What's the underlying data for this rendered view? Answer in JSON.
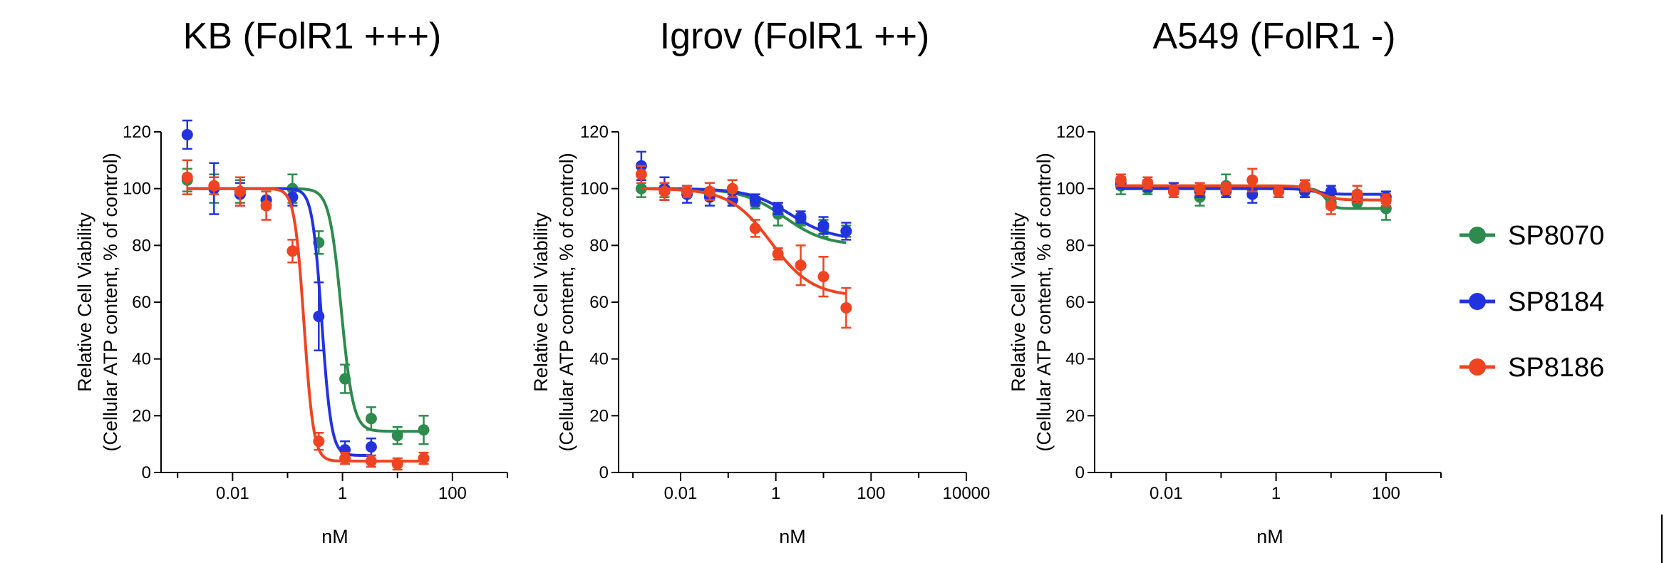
{
  "chart_data": [
    {
      "type": "scatter",
      "title": "KB (FolR1 +++)",
      "xlabel": "nM",
      "ylabel": [
        "Relative Cell Viability",
        "(Cellular ATP content, % of control)"
      ],
      "xscale": "log",
      "xlim": [
        0.0005,
        1000
      ],
      "xticks": [
        0.01,
        1,
        100
      ],
      "ylim": [
        0,
        120
      ],
      "yticks": [
        0,
        20,
        40,
        60,
        80,
        100,
        120
      ],
      "series": [
        {
          "name": "SP8070",
          "color": "#2e8b4e",
          "x": [
            0.0015,
            0.0046,
            0.0137,
            0.041,
            0.123,
            0.37,
            1.11,
            3.33,
            10,
            30
          ],
          "y": [
            103,
            100,
            99,
            96,
            100,
            81,
            33,
            19,
            13,
            15
          ],
          "err": [
            4,
            5,
            4,
            3,
            5,
            4,
            5,
            4,
            3,
            5
          ],
          "fit": {
            "top": 100,
            "bottom": 14.5,
            "ec50": 0.95,
            "hill": 4
          }
        },
        {
          "name": "SP8184",
          "color": "#2233dd",
          "x": [
            0.0015,
            0.0046,
            0.0137,
            0.041,
            0.123,
            0.37,
            1.11,
            3.33
          ],
          "y": [
            119,
            100,
            98,
            96,
            97,
            55,
            8,
            9
          ],
          "err": [
            5,
            9,
            4,
            3,
            3,
            12,
            3,
            3
          ],
          "fit": {
            "top": 100,
            "bottom": 6,
            "ec50": 0.42,
            "hill": 5
          }
        },
        {
          "name": "SP8186",
          "color": "#ee4422",
          "x": [
            0.0015,
            0.0046,
            0.0137,
            0.041,
            0.123,
            0.37,
            1.11,
            3.33,
            10,
            30
          ],
          "y": [
            104,
            101,
            99,
            94,
            78,
            11,
            5,
            4,
            3,
            5
          ],
          "err": [
            6,
            3,
            5,
            5,
            4,
            3,
            2,
            2,
            2,
            2
          ],
          "fit": {
            "top": 100,
            "bottom": 4,
            "ec50": 0.2,
            "hill": 5
          }
        }
      ]
    },
    {
      "type": "scatter",
      "title": "Igrov (FolR1 ++)",
      "xlabel": "nM",
      "ylabel": [
        "Relative Cell Viability",
        "(Cellular ATP content, % of control)"
      ],
      "xscale": "log",
      "xlim": [
        0.0005,
        10000
      ],
      "xticks": [
        0.01,
        1,
        100,
        10000
      ],
      "ylim": [
        0,
        120
      ],
      "yticks": [
        0,
        20,
        40,
        60,
        80,
        100,
        120
      ],
      "series": [
        {
          "name": "SP8070",
          "color": "#2e8b4e",
          "x": [
            0.0015,
            0.0046,
            0.0137,
            0.041,
            0.123,
            0.37,
            1.11,
            3.33,
            10,
            30
          ],
          "y": [
            100,
            99,
            99,
            98,
            96,
            95,
            91,
            89,
            86,
            85
          ],
          "err": [
            3,
            2,
            2,
            2,
            2,
            2,
            4,
            2,
            3,
            2
          ],
          "fit": {
            "top": 100,
            "bottom": 80,
            "ec50": 1.5,
            "hill": 1
          }
        },
        {
          "name": "SP8184",
          "color": "#2233dd",
          "x": [
            0.0015,
            0.0046,
            0.0137,
            0.041,
            0.123,
            0.37,
            1.11,
            3.33,
            10,
            30
          ],
          "y": [
            108,
            100,
            98,
            97,
            96,
            96,
            93,
            90,
            87,
            85
          ],
          "err": [
            5,
            4,
            3,
            3,
            2,
            2,
            2,
            2,
            3,
            3
          ],
          "fit": {
            "top": 100,
            "bottom": 82,
            "ec50": 2,
            "hill": 1
          }
        },
        {
          "name": "SP8186",
          "color": "#ee4422",
          "x": [
            0.0015,
            0.0046,
            0.0137,
            0.041,
            0.123,
            0.37,
            1.11,
            3.33,
            10,
            30
          ],
          "y": [
            105,
            99,
            99,
            99,
            100,
            86,
            77,
            73,
            69,
            58
          ],
          "err": [
            3,
            3,
            2,
            3,
            3,
            3,
            2,
            7,
            7,
            7
          ],
          "fit": {
            "top": 100,
            "bottom": 62,
            "ec50": 0.8,
            "hill": 1
          }
        }
      ]
    },
    {
      "type": "scatter",
      "title": "A549 (FolR1 -)",
      "xlabel": "nM",
      "ylabel": [
        "Relative Cell Viability",
        "(Cellular ATP content, % of control)"
      ],
      "xscale": "log",
      "xlim": [
        0.0005,
        1000
      ],
      "xticks": [
        0.01,
        1,
        100
      ],
      "ylim": [
        0,
        120
      ],
      "yticks": [
        0,
        20,
        40,
        60,
        80,
        100,
        120
      ],
      "series": [
        {
          "name": "SP8070",
          "color": "#2e8b4e",
          "x": [
            0.0015,
            0.0046,
            0.0137,
            0.041,
            0.123,
            0.37,
            1.11,
            3.33,
            10,
            30,
            100
          ],
          "y": [
            101,
            100,
            99,
            97,
            101,
            100,
            99,
            100,
            95,
            95,
            93
          ],
          "err": [
            3,
            2,
            2,
            3,
            4,
            3,
            2,
            3,
            2,
            2,
            4
          ],
          "fit": {
            "top": 100,
            "bottom": 93,
            "ec50": 8,
            "hill": 6
          }
        },
        {
          "name": "SP8184",
          "color": "#2233dd",
          "x": [
            0.0015,
            0.0046,
            0.0137,
            0.041,
            0.123,
            0.37,
            1.11,
            3.33,
            10,
            30,
            100
          ],
          "y": [
            102,
            101,
            100,
            99,
            99,
            98,
            99,
            99,
            99,
            97,
            97
          ],
          "err": [
            2,
            2,
            2,
            2,
            2,
            3,
            2,
            2,
            2,
            2,
            2
          ],
          "fit": {
            "top": 100,
            "bottom": 98,
            "ec50": 5,
            "hill": 3
          }
        },
        {
          "name": "SP8186",
          "color": "#ee4422",
          "x": [
            0.0015,
            0.0046,
            0.0137,
            0.041,
            0.123,
            0.37,
            1.11,
            3.33,
            10,
            30,
            100
          ],
          "y": [
            103,
            102,
            99,
            100,
            100,
            103,
            99,
            101,
            94,
            98,
            96
          ],
          "err": [
            2,
            2,
            2,
            2,
            2,
            4,
            2,
            2,
            3,
            3,
            2
          ],
          "fit": {
            "top": 101,
            "bottom": 96,
            "ec50": 6,
            "hill": 3
          }
        }
      ]
    }
  ],
  "legend": {
    "position": "right",
    "items": [
      {
        "label": "SP8070",
        "color": "#2e8b4e"
      },
      {
        "label": "SP8184",
        "color": "#2233dd"
      },
      {
        "label": "SP8186",
        "color": "#ee4422"
      }
    ]
  }
}
